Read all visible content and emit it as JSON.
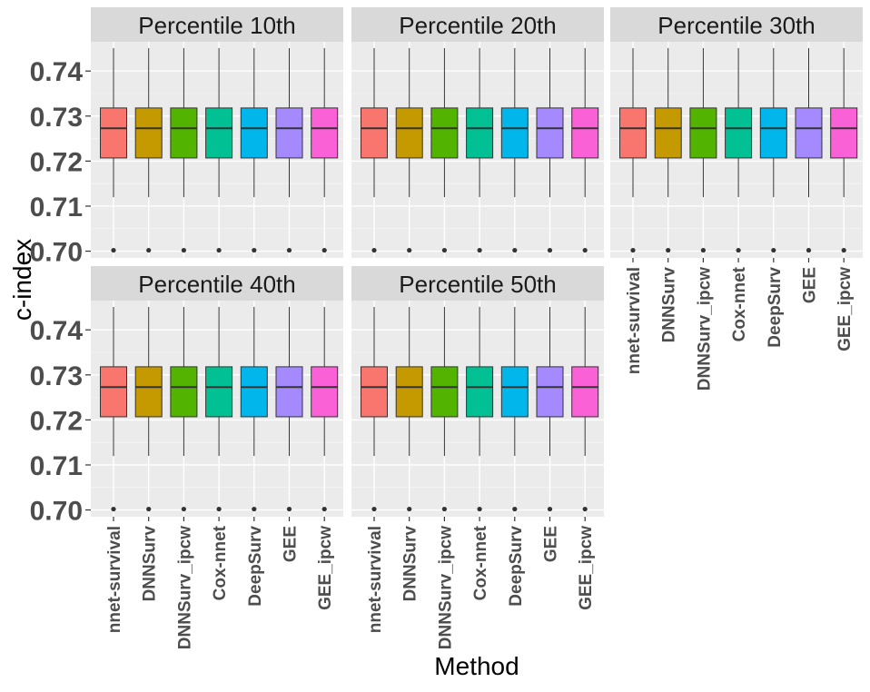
{
  "chart_data": {
    "type": "box",
    "facet_label_prefix": "Percentile",
    "facets": [
      "Percentile 10th",
      "Percentile 20th",
      "Percentile 30th",
      "Percentile 40th",
      "Percentile 50th"
    ],
    "categories": [
      "nnet-survival",
      "DNNSurv",
      "DNNSurv_ipcw",
      "Cox-nnet",
      "DeepSurv",
      "GEE",
      "GEE_ipcw"
    ],
    "colors": [
      "#F8766D",
      "#C49A00",
      "#53B400",
      "#00C094",
      "#00B6EB",
      "#A58AFF",
      "#FB61D7"
    ],
    "xlabel": "Method",
    "ylabel": "c-index",
    "yticks": [
      "0.70",
      "0.71",
      "0.72",
      "0.73",
      "0.74"
    ],
    "ylim": [
      0.6985,
      0.7465
    ],
    "box_stats": {
      "lower_whisker": 0.712,
      "q1": 0.7207,
      "median": 0.7273,
      "q3": 0.7318,
      "upper_whisker": 0.7451,
      "outliers": [
        0.7002
      ]
    },
    "legend": "none",
    "grid": true
  }
}
